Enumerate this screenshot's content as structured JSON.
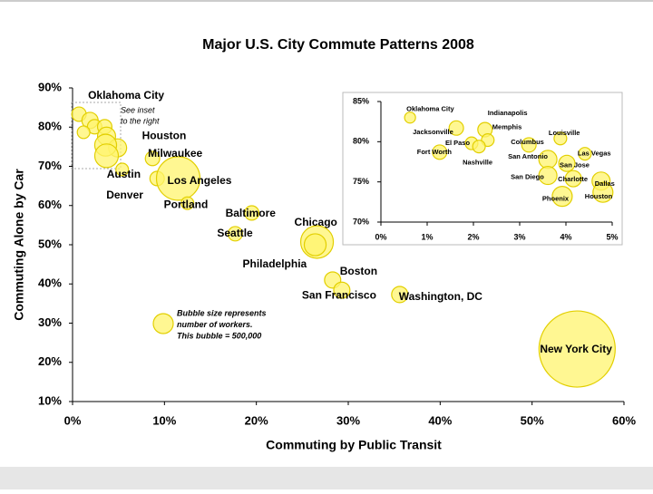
{
  "chart_data": [
    {
      "type": "bubble",
      "title": "Major U.S. City Commute Patterns 2008",
      "x_label": "Commuting by Public Transit",
      "y_label": "Commuting Alone by Car",
      "xlim": [
        0,
        60
      ],
      "ylim": [
        10,
        90
      ],
      "xticks": [
        {
          "value": 0,
          "label": "0%"
        },
        {
          "value": 10,
          "label": "10%"
        },
        {
          "value": 20,
          "label": "20%"
        },
        {
          "value": 30,
          "label": "30%"
        },
        {
          "value": 40,
          "label": "40%"
        },
        {
          "value": 50,
          "label": "50%"
        },
        {
          "value": 60,
          "label": "60%"
        }
      ],
      "yticks": [
        {
          "value": 10,
          "label": "10%"
        },
        {
          "value": 20,
          "label": "20%"
        },
        {
          "value": 30,
          "label": "30%"
        },
        {
          "value": 40,
          "label": "40%"
        },
        {
          "value": 50,
          "label": "50%"
        },
        {
          "value": 60,
          "label": "60%"
        },
        {
          "value": 70,
          "label": "70%"
        },
        {
          "value": 80,
          "label": "80%"
        },
        {
          "value": 90,
          "label": "90%"
        }
      ],
      "color": "#fff46e",
      "x": [
        0.7,
        1.9,
        2.4,
        3.5,
        1.2,
        3.7,
        4.9,
        3.6,
        3.7,
        5.4,
        8.7,
        9.2,
        11.5,
        12.5,
        19.5,
        17.7,
        26.6,
        26.4,
        28.3,
        29.3,
        35.6,
        54.9
      ],
      "values": [
        83.3,
        81.7,
        80.1,
        80.1,
        78.7,
        77.7,
        74.7,
        75.4,
        72.7,
        69.2,
        72.0,
        66.9,
        66.9,
        60.6,
        58.1,
        52.8,
        50.7,
        50.0,
        41.0,
        38.4,
        37.3,
        23.4
      ],
      "sizes": [
        260000,
        330000,
        260000,
        260000,
        200000,
        410000,
        410000,
        600000,
        700000,
        200000,
        260000,
        260000,
        2380000,
        200000,
        260000,
        260000,
        1340000,
        600000,
        330000,
        330000,
        330000,
        7290000
      ],
      "labels": [
        "Oklahoma City",
        null,
        null,
        null,
        null,
        null,
        "Houston",
        null,
        null,
        "Austin",
        "Milwaukee",
        "Denver",
        "Los Angeles",
        "Portland",
        "Baltimore",
        "Seattle",
        "Chicago",
        "Philadelphia",
        "Boston",
        "San Francisco",
        "Washington, DC",
        "New York City"
      ],
      "inset_note": [
        "See inset",
        "to the right"
      ],
      "size_note": [
        "Bubble size represents",
        "number of workers.",
        "This bubble = 500,000"
      ],
      "size_legend": 500000
    },
    {
      "type": "bubble",
      "xlim": [
        0,
        5
      ],
      "ylim": [
        70,
        85
      ],
      "xticks": [
        {
          "value": 0,
          "label": "0%"
        },
        {
          "value": 1,
          "label": "1%"
        },
        {
          "value": 2,
          "label": "2%"
        },
        {
          "value": 3,
          "label": "3%"
        },
        {
          "value": 4,
          "label": "4%"
        },
        {
          "value": 5,
          "label": "5%"
        }
      ],
      "yticks": [
        {
          "value": 70,
          "label": "70%"
        },
        {
          "value": 75,
          "label": "75%"
        },
        {
          "value": 80,
          "label": "80%"
        },
        {
          "value": 85,
          "label": "85%"
        }
      ],
      "color": "#fff46e",
      "x": [
        0.63,
        1.63,
        2.25,
        2.31,
        1.96,
        1.27,
        2.12,
        3.88,
        3.2,
        3.61,
        4.41,
        4.02,
        3.61,
        4.16,
        4.76,
        3.92,
        4.8
      ],
      "values": [
        83.0,
        81.7,
        81.5,
        80.2,
        79.8,
        78.7,
        79.4,
        80.4,
        79.6,
        77.8,
        78.5,
        77.3,
        75.8,
        75.4,
        75.1,
        73.2,
        73.7
      ],
      "sizes": [
        150000,
        260000,
        260000,
        200000,
        200000,
        260000,
        200000,
        200000,
        260000,
        410000,
        200000,
        330000,
        410000,
        330000,
        410000,
        500000,
        500000
      ],
      "labels": [
        "Oklahoma City",
        "Jacksonville",
        "Indianapolis",
        "Memphis",
        "El Paso",
        "Fort Worth",
        "Nashville",
        "Louisville",
        "Columbus",
        "San Antonio",
        "Las Vegas",
        "San Jose",
        "San Diego",
        "Charlotte",
        "Dallas",
        "Phoenix",
        "Houston"
      ]
    }
  ]
}
